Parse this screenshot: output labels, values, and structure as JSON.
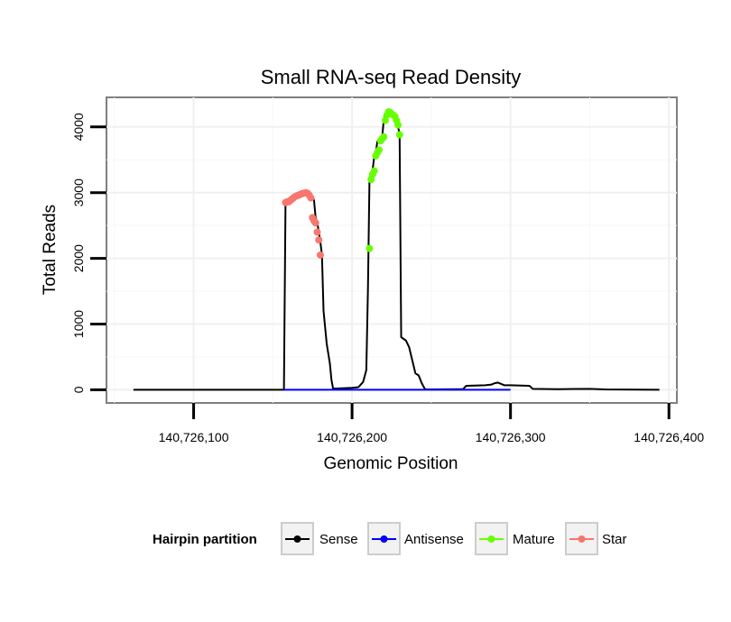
{
  "chart_data": {
    "type": "line",
    "title": "Small RNA-seq Read Density",
    "xlabel": "Genomic Position",
    "ylabel": "Total Reads",
    "xlim": [
      140726045,
      140726405
    ],
    "ylim": [
      -200,
      4450
    ],
    "x_ticks": [
      {
        "value": 140726100,
        "label": "140,726,100"
      },
      {
        "value": 140726200,
        "label": "140,726,200"
      },
      {
        "value": 140726300,
        "label": "140,726,300"
      },
      {
        "value": 140726400,
        "label": "140,726,400"
      }
    ],
    "y_ticks": [
      {
        "value": 0,
        "label": "0"
      },
      {
        "value": 1000,
        "label": "1000"
      },
      {
        "value": 2000,
        "label": "2000"
      },
      {
        "value": 3000,
        "label": "3000"
      },
      {
        "value": 4000,
        "label": "4000"
      }
    ],
    "grid": true,
    "series": [
      {
        "name": "Sense",
        "color": "#000000",
        "kind": "line",
        "points": [
          [
            140726062,
            0
          ],
          [
            140726157,
            0
          ],
          [
            140726158,
            2850
          ],
          [
            140726160,
            2860
          ],
          [
            140726162,
            2870
          ],
          [
            140726164,
            2900
          ],
          [
            140726166,
            2940
          ],
          [
            140726168,
            2970
          ],
          [
            140726170,
            2990
          ],
          [
            140726172,
            3000
          ],
          [
            140726174,
            2980
          ],
          [
            140726175,
            2940
          ],
          [
            140726176,
            2880
          ],
          [
            140726177,
            2620
          ],
          [
            140726178,
            2550
          ],
          [
            140726179,
            2400
          ],
          [
            140726180,
            2250
          ],
          [
            140726181,
            2050
          ],
          [
            140726182,
            1200
          ],
          [
            140726184,
            700
          ],
          [
            140726186,
            400
          ],
          [
            140726187,
            150
          ],
          [
            140726188,
            20
          ],
          [
            140726190,
            20
          ],
          [
            140726200,
            30
          ],
          [
            140726204,
            40
          ],
          [
            140726207,
            120
          ],
          [
            140726209,
            300
          ],
          [
            140726210,
            1500
          ],
          [
            140726211,
            3200
          ],
          [
            140726212,
            3300
          ],
          [
            140726213,
            3350
          ],
          [
            140726214,
            3550
          ],
          [
            140726215,
            3620
          ],
          [
            140726216,
            3780
          ],
          [
            140726218,
            3820
          ],
          [
            140726219,
            3850
          ],
          [
            140726220,
            4100
          ],
          [
            140726221,
            4200
          ],
          [
            140726222,
            4230
          ],
          [
            140726224,
            4220
          ],
          [
            140726226,
            4200
          ],
          [
            140726228,
            4100
          ],
          [
            140726229,
            4000
          ],
          [
            140726230,
            3900
          ],
          [
            140726231,
            800
          ],
          [
            140726234,
            750
          ],
          [
            140726236,
            650
          ],
          [
            140726238,
            450
          ],
          [
            140726240,
            250
          ],
          [
            140726242,
            220
          ],
          [
            140726244,
            100
          ],
          [
            140726246,
            10
          ],
          [
            140726248,
            5
          ],
          [
            140726270,
            10
          ],
          [
            140726272,
            60
          ],
          [
            140726284,
            70
          ],
          [
            140726288,
            80
          ],
          [
            140726290,
            100
          ],
          [
            140726292,
            110
          ],
          [
            140726294,
            90
          ],
          [
            140726296,
            70
          ],
          [
            140726300,
            70
          ],
          [
            140726312,
            60
          ],
          [
            140726314,
            15
          ],
          [
            140726330,
            10
          ],
          [
            140726350,
            15
          ],
          [
            140726360,
            5
          ],
          [
            140726394,
            0
          ]
        ]
      },
      {
        "name": "Antisense",
        "color": "#0000ff",
        "kind": "line",
        "points": [
          [
            140726157,
            0
          ],
          [
            140726300,
            0
          ]
        ]
      },
      {
        "name": "Mature",
        "color": "#66ff00",
        "kind": "points",
        "points": [
          [
            140726211,
            2150
          ],
          [
            140726212,
            3200
          ],
          [
            140726213,
            3280
          ],
          [
            140726214,
            3330
          ],
          [
            140726215,
            3560
          ],
          [
            140726216,
            3610
          ],
          [
            140726217,
            3650
          ],
          [
            140726218,
            3790
          ],
          [
            140726219,
            3820
          ],
          [
            140726220,
            3850
          ],
          [
            140726221,
            4100
          ],
          [
            140726222,
            4180
          ],
          [
            140726223,
            4230
          ],
          [
            140726224,
            4220
          ],
          [
            140726225,
            4200
          ],
          [
            140726226,
            4180
          ],
          [
            140726227,
            4160
          ],
          [
            140726228,
            4100
          ],
          [
            140726229,
            4030
          ],
          [
            140726230,
            3880
          ]
        ]
      },
      {
        "name": "Star",
        "color": "#f8766d",
        "kind": "points",
        "points": [
          [
            140726158,
            2850
          ],
          [
            140726159,
            2860
          ],
          [
            140726160,
            2860
          ],
          [
            140726161,
            2880
          ],
          [
            140726162,
            2900
          ],
          [
            140726163,
            2920
          ],
          [
            140726164,
            2940
          ],
          [
            140726165,
            2950
          ],
          [
            140726166,
            2960
          ],
          [
            140726167,
            2970
          ],
          [
            140726168,
            2980
          ],
          [
            140726169,
            2990
          ],
          [
            140726170,
            2995
          ],
          [
            140726171,
            3000
          ],
          [
            140726172,
            2990
          ],
          [
            140726173,
            2960
          ],
          [
            140726174,
            2920
          ],
          [
            140726175,
            2620
          ],
          [
            140726176,
            2570
          ],
          [
            140726177,
            2540
          ],
          [
            140726178,
            2400
          ],
          [
            140726179,
            2280
          ],
          [
            140726180,
            2050
          ]
        ]
      }
    ],
    "legend": {
      "title": "Hairpin partition",
      "position": "bottom",
      "entries": [
        {
          "label": "Sense",
          "color": "#000000"
        },
        {
          "label": "Antisense",
          "color": "#0000ff"
        },
        {
          "label": "Mature",
          "color": "#66ff00"
        },
        {
          "label": "Star",
          "color": "#f8766d"
        }
      ]
    }
  }
}
